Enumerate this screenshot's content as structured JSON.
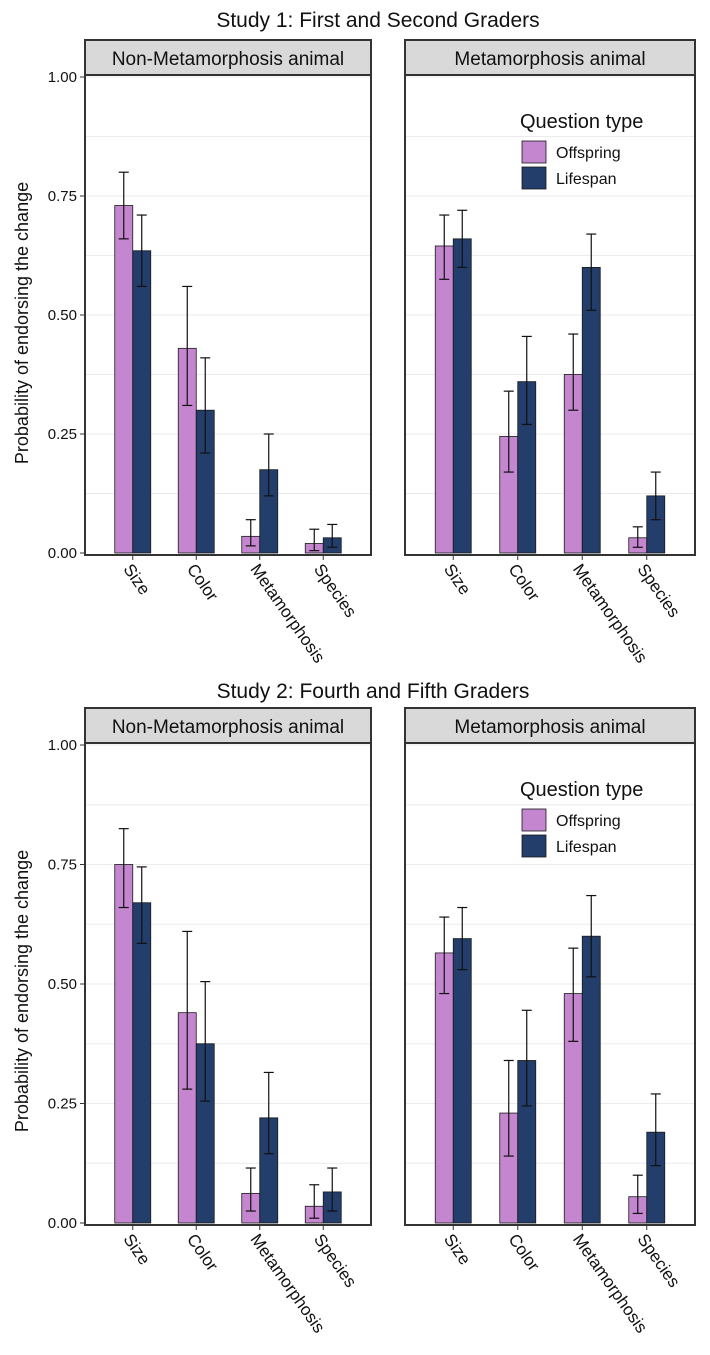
{
  "colors": {
    "offspring": "#c486cf",
    "lifespan": "#233e6b",
    "strip_fill": "#d9d9d9",
    "panel_border": "#333333",
    "grid": "#ebebeb",
    "error_bar": "#111111"
  },
  "y_axis_label": "Probability of endorsing the change",
  "y_ticks": [
    "0.00",
    "0.25",
    "0.50",
    "0.75",
    "1.00"
  ],
  "legend": {
    "title": "Question type",
    "items": [
      {
        "label": "Offspring",
        "color": "#c486cf"
      },
      {
        "label": "Lifespan",
        "color": "#233e6b"
      }
    ],
    "placement": "top-right of right panel"
  },
  "chart_data": [
    {
      "type": "bar",
      "title": "Study 1: First and Second Graders",
      "ylabel": "Probability of endorsing the change",
      "ylim": [
        0,
        1
      ],
      "grid": true,
      "panels": [
        {
          "strip": "Non-Metamorphosis animal",
          "categories": [
            "Size",
            "Color",
            "Metamorphosis",
            "Species"
          ],
          "series": [
            {
              "name": "Offspring",
              "values": [
                0.73,
                0.43,
                0.035,
                0.02
              ],
              "err_low": [
                0.66,
                0.31,
                0.015,
                0.005
              ],
              "err_high": [
                0.8,
                0.56,
                0.07,
                0.05
              ]
            },
            {
              "name": "Lifespan",
              "values": [
                0.635,
                0.3,
                0.175,
                0.032
              ],
              "err_low": [
                0.56,
                0.21,
                0.12,
                0.012
              ],
              "err_high": [
                0.71,
                0.41,
                0.25,
                0.06
              ]
            }
          ]
        },
        {
          "strip": "Metamorphosis animal",
          "categories": [
            "Size",
            "Color",
            "Metamorphosis",
            "Species"
          ],
          "series": [
            {
              "name": "Offspring",
              "values": [
                0.645,
                0.245,
                0.375,
                0.032
              ],
              "err_low": [
                0.575,
                0.17,
                0.3,
                0.012
              ],
              "err_high": [
                0.71,
                0.34,
                0.46,
                0.055
              ]
            },
            {
              "name": "Lifespan",
              "values": [
                0.66,
                0.36,
                0.6,
                0.12
              ],
              "err_low": [
                0.6,
                0.27,
                0.51,
                0.07
              ],
              "err_high": [
                0.72,
                0.455,
                0.67,
                0.17
              ]
            }
          ]
        }
      ]
    },
    {
      "type": "bar",
      "title": "Study 2: Fourth and Fifth Graders",
      "ylabel": "Probability of endorsing the change",
      "ylim": [
        0,
        1
      ],
      "grid": true,
      "panels": [
        {
          "strip": "Non-Metamorphosis animal",
          "categories": [
            "Size",
            "Color",
            "Metamorphosis",
            "Species"
          ],
          "series": [
            {
              "name": "Offspring",
              "values": [
                0.75,
                0.44,
                0.062,
                0.035
              ],
              "err_low": [
                0.66,
                0.28,
                0.025,
                0.01
              ],
              "err_high": [
                0.825,
                0.61,
                0.115,
                0.08
              ]
            },
            {
              "name": "Lifespan",
              "values": [
                0.67,
                0.375,
                0.22,
                0.065
              ],
              "err_low": [
                0.585,
                0.255,
                0.145,
                0.025
              ],
              "err_high": [
                0.745,
                0.505,
                0.315,
                0.115
              ]
            }
          ]
        },
        {
          "strip": "Metamorphosis animal",
          "categories": [
            "Size",
            "Color",
            "Metamorphosis",
            "Species"
          ],
          "series": [
            {
              "name": "Offspring",
              "values": [
                0.565,
                0.23,
                0.48,
                0.055
              ],
              "err_low": [
                0.48,
                0.14,
                0.38,
                0.02
              ],
              "err_high": [
                0.64,
                0.34,
                0.575,
                0.1
              ]
            },
            {
              "name": "Lifespan",
              "values": [
                0.595,
                0.34,
                0.6,
                0.19
              ],
              "err_low": [
                0.53,
                0.245,
                0.515,
                0.12
              ],
              "err_high": [
                0.66,
                0.445,
                0.685,
                0.27
              ]
            }
          ]
        }
      ]
    }
  ]
}
